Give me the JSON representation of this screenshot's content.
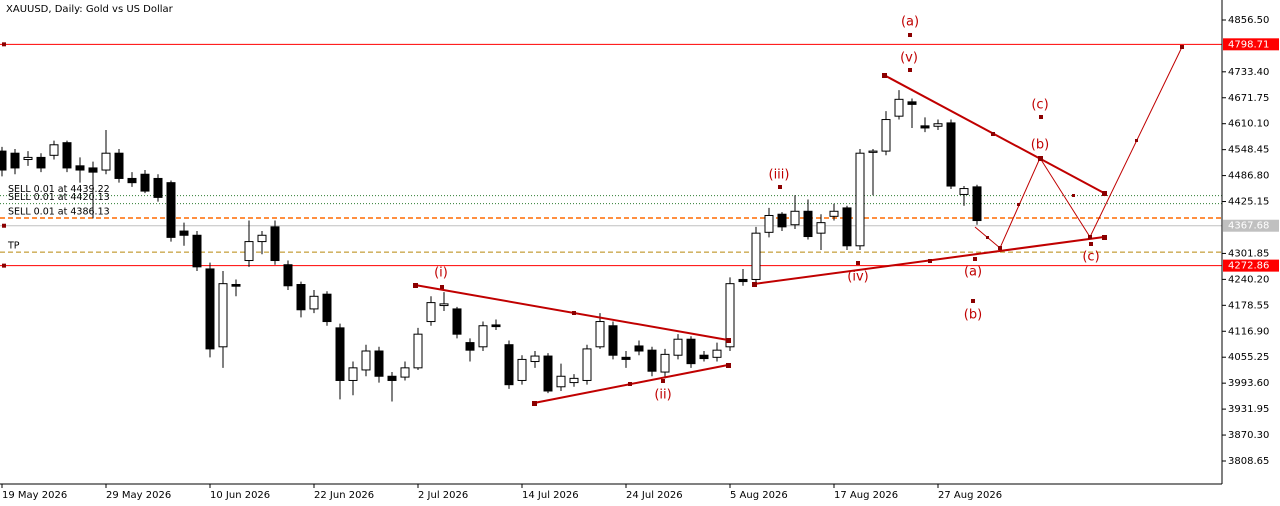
{
  "chart_data": {
    "type": "candlestick",
    "title": "XAUUSD, Daily:  Gold vs US Dollar",
    "categories": [
      "19 May 2026",
      null,
      null,
      null,
      null,
      null,
      null,
      null,
      "29 May 2026",
      null,
      null,
      null,
      null,
      null,
      null,
      null,
      "10 Jun 2026",
      null,
      null,
      null,
      null,
      null,
      null,
      null,
      "22 Jun 2026",
      null,
      null,
      null,
      null,
      null,
      null,
      null,
      "2 Jul 2026",
      null,
      null,
      null,
      null,
      null,
      null,
      null,
      "14 Jul 2026",
      null,
      null,
      null,
      null,
      null,
      null,
      null,
      "24 Jul 2026",
      null,
      null,
      null,
      null,
      null,
      null,
      null,
      "5 Aug 2026",
      null,
      null,
      null,
      null,
      null,
      null,
      null,
      "17 Aug 2026",
      null,
      null,
      null,
      null,
      null,
      null,
      null,
      "27 Aug 2026",
      null,
      null,
      null
    ],
    "open": [
      4545,
      4540,
      4525,
      4530,
      4535,
      4565,
      4510,
      4505,
      4500,
      4540,
      4480,
      4490,
      4480,
      4470,
      4355,
      4345,
      4265,
      4080,
      4228,
      4285,
      4330,
      4365,
      4275,
      4228,
      4170,
      4205,
      4125,
      4000,
      4025,
      4070,
      4010,
      4008,
      4030,
      4140,
      4178,
      4170,
      4090,
      4080,
      4132,
      4085,
      4000,
      4045,
      4058,
      3985,
      3995,
      4000,
      4080,
      4130,
      4055,
      4082,
      4072,
      4020,
      4060,
      4098,
      4060,
      4055,
      4080,
      4240,
      4240,
      4352,
      4395,
      4370,
      4402,
      4350,
      4390,
      4410,
      4320,
      4542,
      4545,
      4628,
      4662,
      4605,
      4604,
      4612,
      4442,
      4460
    ],
    "high": [
      4555,
      4550,
      4545,
      4540,
      4570,
      4570,
      4530,
      4520,
      4595,
      4550,
      4495,
      4500,
      4490,
      4475,
      4375,
      4355,
      4280,
      4260,
      4240,
      4380,
      4355,
      4380,
      4285,
      4235,
      4215,
      4212,
      4135,
      4045,
      4085,
      4080,
      4020,
      4045,
      4125,
      4200,
      4210,
      4175,
      4100,
      4140,
      4145,
      4095,
      4060,
      4070,
      4065,
      4040,
      4015,
      4085,
      4160,
      4140,
      4070,
      4095,
      4080,
      4075,
      4110,
      4105,
      4070,
      4090,
      4245,
      4265,
      4365,
      4410,
      4400,
      4440,
      4430,
      4395,
      4420,
      4415,
      4550,
      4550,
      4640,
      4690,
      4670,
      4625,
      4620,
      4620,
      4462,
      4465
    ],
    "low": [
      4485,
      4490,
      4510,
      4495,
      4525,
      4495,
      4470,
      4385,
      4490,
      4470,
      4460,
      4445,
      4425,
      4330,
      4320,
      4260,
      4055,
      4030,
      4200,
      4270,
      4300,
      4275,
      4215,
      4150,
      4160,
      4130,
      3955,
      3965,
      4010,
      3995,
      3950,
      4000,
      4025,
      4130,
      4165,
      4100,
      4045,
      4070,
      4120,
      3980,
      3990,
      4030,
      3970,
      3975,
      3985,
      3990,
      4075,
      4050,
      4030,
      4060,
      4010,
      4005,
      4050,
      4030,
      4045,
      4045,
      4070,
      4225,
      4230,
      4340,
      4355,
      4360,
      4335,
      4310,
      4380,
      4310,
      4310,
      4440,
      4535,
      4620,
      4600,
      4590,
      4595,
      4455,
      4415,
      4370
    ],
    "close": [
      4500,
      4505,
      4530,
      4505,
      4560,
      4505,
      4500,
      4495,
      4540,
      4480,
      4470,
      4450,
      4435,
      4340,
      4345,
      4270,
      4075,
      4230,
      4224,
      4330,
      4345,
      4285,
      4225,
      4168,
      4200,
      4140,
      4000,
      4030,
      4070,
      4010,
      4000,
      4030,
      4110,
      4185,
      4182,
      4110,
      4072,
      4130,
      4128,
      3990,
      4050,
      4058,
      3975,
      4010,
      4005,
      4075,
      4140,
      4060,
      4050,
      4070,
      4022,
      4062,
      4098,
      4040,
      4052,
      4072,
      4230,
      4235,
      4350,
      4392,
      4365,
      4402,
      4342,
      4375,
      4402,
      4320,
      4540,
      4545,
      4620,
      4668,
      4656,
      4600,
      4610,
      4462,
      4456,
      4380
    ],
    "ylim": [
      3754,
      4904.02
    ],
    "yticks": [
      {
        "value": 4856.5,
        "label": "4856.50"
      },
      {
        "value": 4733.4,
        "label": "4733.40"
      },
      4671.75,
      {
        "value": 4610.1,
        "label": "4610.10"
      },
      4548.45,
      {
        "value": 4486.8,
        "label": "4486.80"
      },
      4425.15,
      4301.85,
      {
        "value": 4240.2,
        "label": "4240.20"
      },
      4178.55,
      {
        "value": 4116.9,
        "label": "4116.90"
      },
      4055.25,
      {
        "value": 3993.6,
        "label": "3993.60"
      },
      3931.95,
      {
        "value": 3870.3,
        "label": "3870.30"
      },
      3808.65
    ],
    "levels": [
      {
        "value": 4798.71,
        "color": "#ff0000"
      },
      {
        "value": 4367.68,
        "color": "#c0c0c0"
      },
      {
        "value": 4272.86,
        "color": "#ff0000"
      }
    ],
    "orders": [
      {
        "label": "SELL 0.01 at 4439.22",
        "price": 4439.22,
        "color": "#2e7d32"
      },
      {
        "label": "SELL 0.01 at 4420.13",
        "price": 4420.13,
        "color": "#2e7d32"
      },
      {
        "label": "SELL 0.01 at 4386.13",
        "price": 4386.13,
        "color": "#ff6a00"
      },
      {
        "label": "TP",
        "price": 4305,
        "color": "#b8860b"
      }
    ],
    "wave_labels": [
      "(a)",
      "(v)",
      "(iii)",
      "(i)",
      "(ii)",
      "(iv)",
      "(a)",
      "(b)",
      "(b)",
      "(c)",
      "(c)"
    ],
    "up_color": "#ffffff",
    "down_color": "#000000"
  }
}
